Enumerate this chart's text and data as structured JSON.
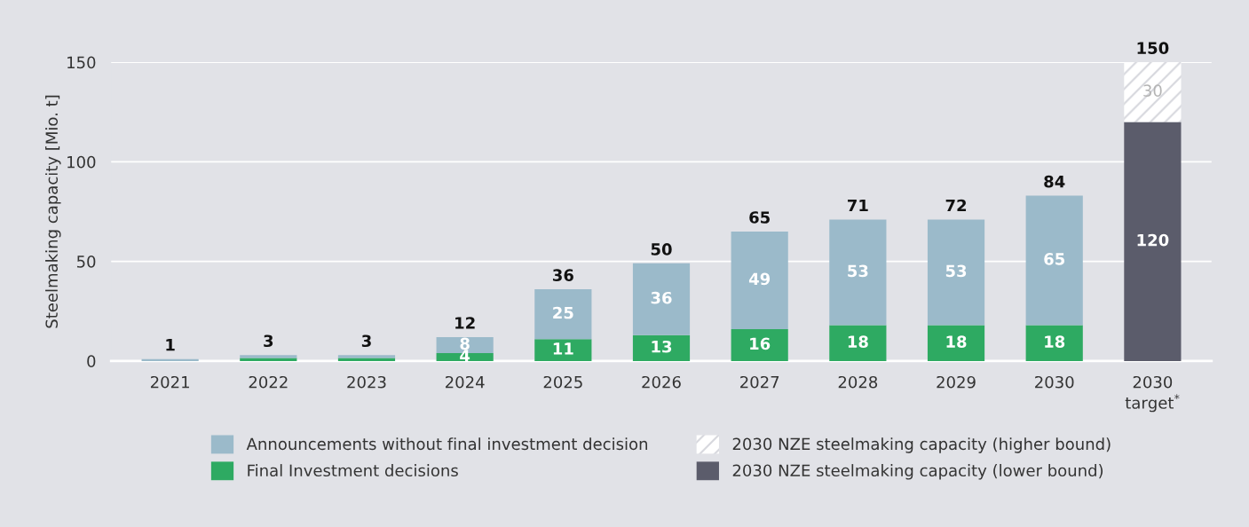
{
  "chart_data": {
    "type": "bar",
    "stacked": true,
    "ylabel": "Steelmaking capacity [Mio. t]",
    "categories": [
      "2021",
      "2022",
      "2023",
      "2024",
      "2025",
      "2026",
      "2027",
      "2028",
      "2029",
      "2030",
      "2030\ntarget$^{*}$"
    ],
    "series": [
      {
        "name": "Final Investment decisions",
        "color": "#2eaa62",
        "values": [
          0,
          1.5,
          1.5,
          4,
          11,
          13,
          16,
          18,
          18,
          18,
          0
        ],
        "value_labels": [
          null,
          null,
          null,
          "4",
          "11",
          "13",
          "16",
          "18",
          "18",
          "18",
          null
        ]
      },
      {
        "name": "Announcements without final investment decision",
        "color": "#9bbaca",
        "values": [
          1,
          1.5,
          1.5,
          8,
          25,
          36,
          49,
          53,
          53,
          65,
          0
        ],
        "value_labels": [
          null,
          null,
          null,
          "8",
          "25",
          "36",
          "49",
          "53",
          "53",
          "65",
          null
        ]
      },
      {
        "name": "2030 NZE steelmaking capacity (lower bound)",
        "color": "#5b5c6b",
        "values": [
          0,
          0,
          0,
          0,
          0,
          0,
          0,
          0,
          0,
          0,
          120
        ],
        "value_labels": [
          null,
          null,
          null,
          null,
          null,
          null,
          null,
          null,
          null,
          null,
          "120"
        ]
      },
      {
        "name": "2030 NZE steelmaking capacity (higher bound)",
        "color": "#ffffff",
        "values": [
          0,
          0,
          0,
          0,
          0,
          0,
          0,
          0,
          0,
          0,
          30
        ],
        "value_labels": [
          null,
          null,
          null,
          null,
          null,
          null,
          null,
          null,
          null,
          null,
          "30"
        ]
      }
    ],
    "totals": [
      "1",
      "3",
      "3",
      "12",
      "36",
      "50",
      "65",
      "71",
      "72",
      "84",
      "150"
    ],
    "ylim": [
      0,
      150
    ],
    "yticks": [
      0,
      50,
      100,
      150
    ],
    "grid": "y",
    "legend": "bottom"
  }
}
